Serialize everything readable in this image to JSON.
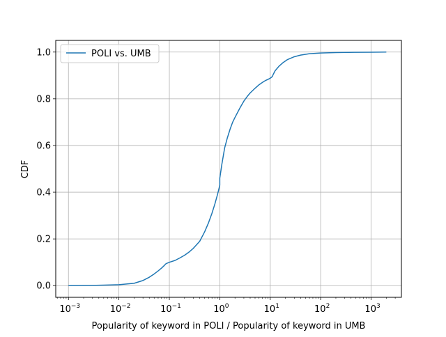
{
  "chart_data": {
    "type": "line",
    "title": "",
    "xlabel": "Popularity of keyword in POLI / Popularity of keyword in UMB",
    "ylabel": "CDF",
    "xscale": "log",
    "xlim": [
      0.00056,
      3981
    ],
    "ylim": [
      -0.05,
      1.05
    ],
    "x_ticks": [
      {
        "value": 0.001,
        "base": "10",
        "exp": "−3"
      },
      {
        "value": 0.01,
        "base": "10",
        "exp": "−2"
      },
      {
        "value": 0.1,
        "base": "10",
        "exp": "−1"
      },
      {
        "value": 1,
        "base": "10",
        "exp": "0"
      },
      {
        "value": 10,
        "base": "10",
        "exp": "1"
      },
      {
        "value": 100,
        "base": "10",
        "exp": "2"
      },
      {
        "value": 1000,
        "base": "10",
        "exp": "3"
      }
    ],
    "y_ticks": [
      {
        "value": 0.0,
        "label": "0.0"
      },
      {
        "value": 0.2,
        "label": "0.2"
      },
      {
        "value": 0.4,
        "label": "0.4"
      },
      {
        "value": 0.6,
        "label": "0.6"
      },
      {
        "value": 0.8,
        "label": "0.8"
      },
      {
        "value": 1.0,
        "label": "1.0"
      }
    ],
    "grid": true,
    "legend_position": "top-left",
    "series": [
      {
        "name": "POLI vs. UMB",
        "color": "#1f77b4",
        "x": [
          0.001,
          0.003,
          0.005,
          0.01,
          0.02,
          0.03,
          0.04,
          0.05,
          0.06,
          0.07,
          0.08,
          0.085,
          0.09,
          0.1,
          0.13,
          0.16,
          0.2,
          0.25,
          0.3,
          0.4,
          0.5,
          0.6,
          0.7,
          0.8,
          0.9,
          0.95,
          1.0,
          1.0,
          1.1,
          1.25,
          1.4,
          1.6,
          1.8,
          2.0,
          2.5,
          3.0,
          3.5,
          4.0,
          5.0,
          6.0,
          7.0,
          8.0,
          9.0,
          10.0,
          11.0,
          11.5,
          12.5,
          15,
          18,
          22,
          30,
          40,
          60,
          100,
          200,
          500,
          1000,
          2000
        ],
        "y": [
          0.0,
          0.001,
          0.002,
          0.004,
          0.01,
          0.022,
          0.036,
          0.05,
          0.063,
          0.075,
          0.087,
          0.093,
          0.096,
          0.1,
          0.108,
          0.118,
          0.13,
          0.145,
          0.16,
          0.19,
          0.23,
          0.27,
          0.31,
          0.35,
          0.39,
          0.41,
          0.43,
          0.46,
          0.52,
          0.59,
          0.63,
          0.67,
          0.7,
          0.72,
          0.76,
          0.79,
          0.81,
          0.825,
          0.845,
          0.86,
          0.87,
          0.878,
          0.883,
          0.888,
          0.895,
          0.905,
          0.92,
          0.94,
          0.955,
          0.968,
          0.98,
          0.987,
          0.993,
          0.996,
          0.998,
          0.999,
          0.9995,
          1.0
        ]
      }
    ]
  }
}
